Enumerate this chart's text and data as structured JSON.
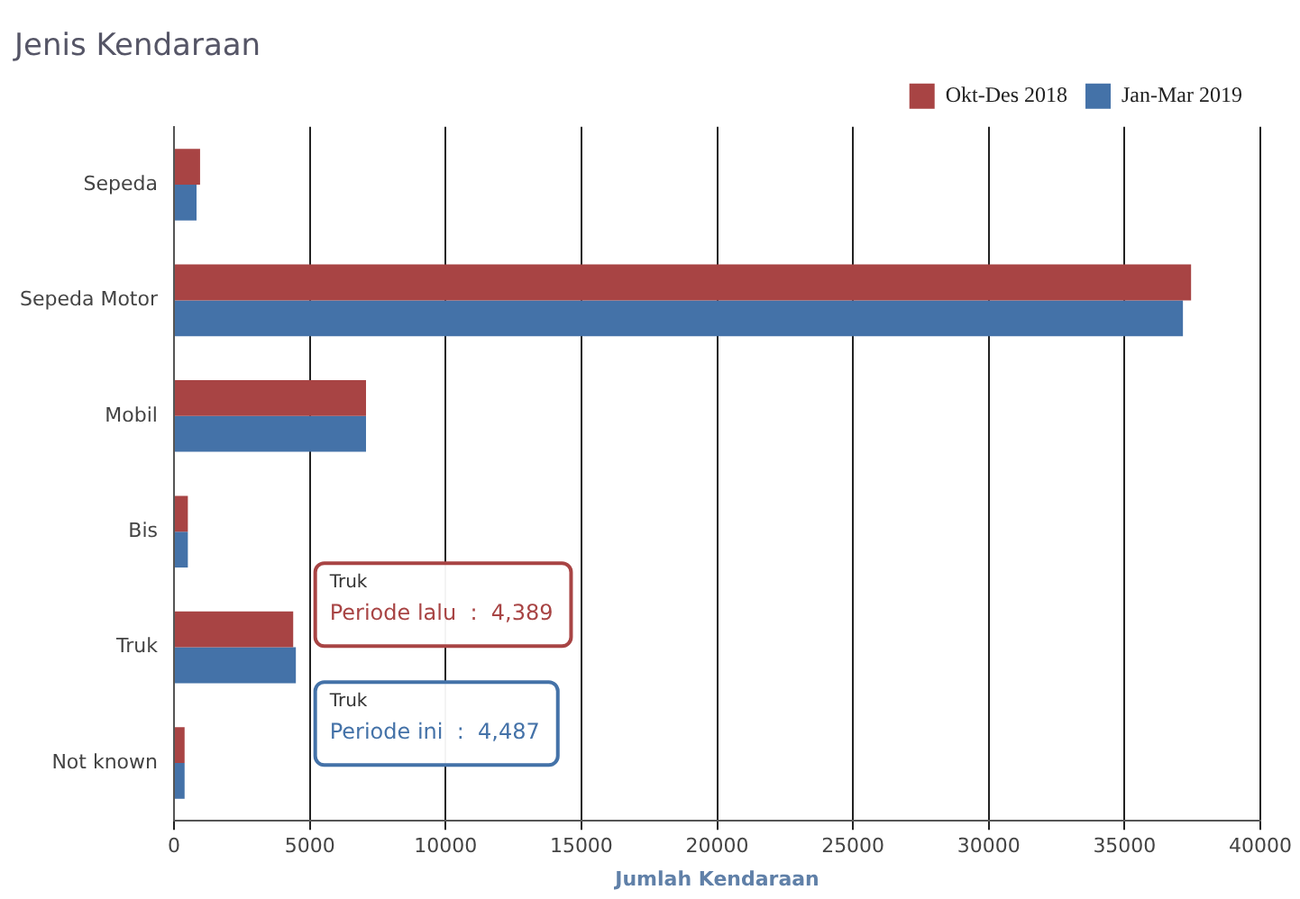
{
  "chart_data": {
    "type": "bar",
    "orientation": "horizontal",
    "title": "Jenis Kendaraan",
    "xlabel": "Jumlah Kendaraan",
    "categories": [
      "Sepeda",
      "Sepeda Motor",
      "Mobil",
      "Bis",
      "Truk",
      "Not known"
    ],
    "series": [
      {
        "name": "Okt-Des 2018",
        "color": "#a84444",
        "values": [
          960,
          37450,
          7070,
          510,
          4389,
          390
        ]
      },
      {
        "name": "Jan-Mar 2019",
        "color": "#4472a8",
        "values": [
          830,
          37150,
          7070,
          510,
          4487,
          390
        ]
      }
    ],
    "xlim": [
      0,
      40000
    ],
    "xticks": [
      0,
      5000,
      10000,
      15000,
      20000,
      25000,
      30000,
      35000,
      40000
    ],
    "grid": "x",
    "legend": "top right",
    "annotations": [
      "Truk\nPeriode lalu  :  4,389",
      "Truk\nPeriode ini  :  4,487"
    ]
  }
}
